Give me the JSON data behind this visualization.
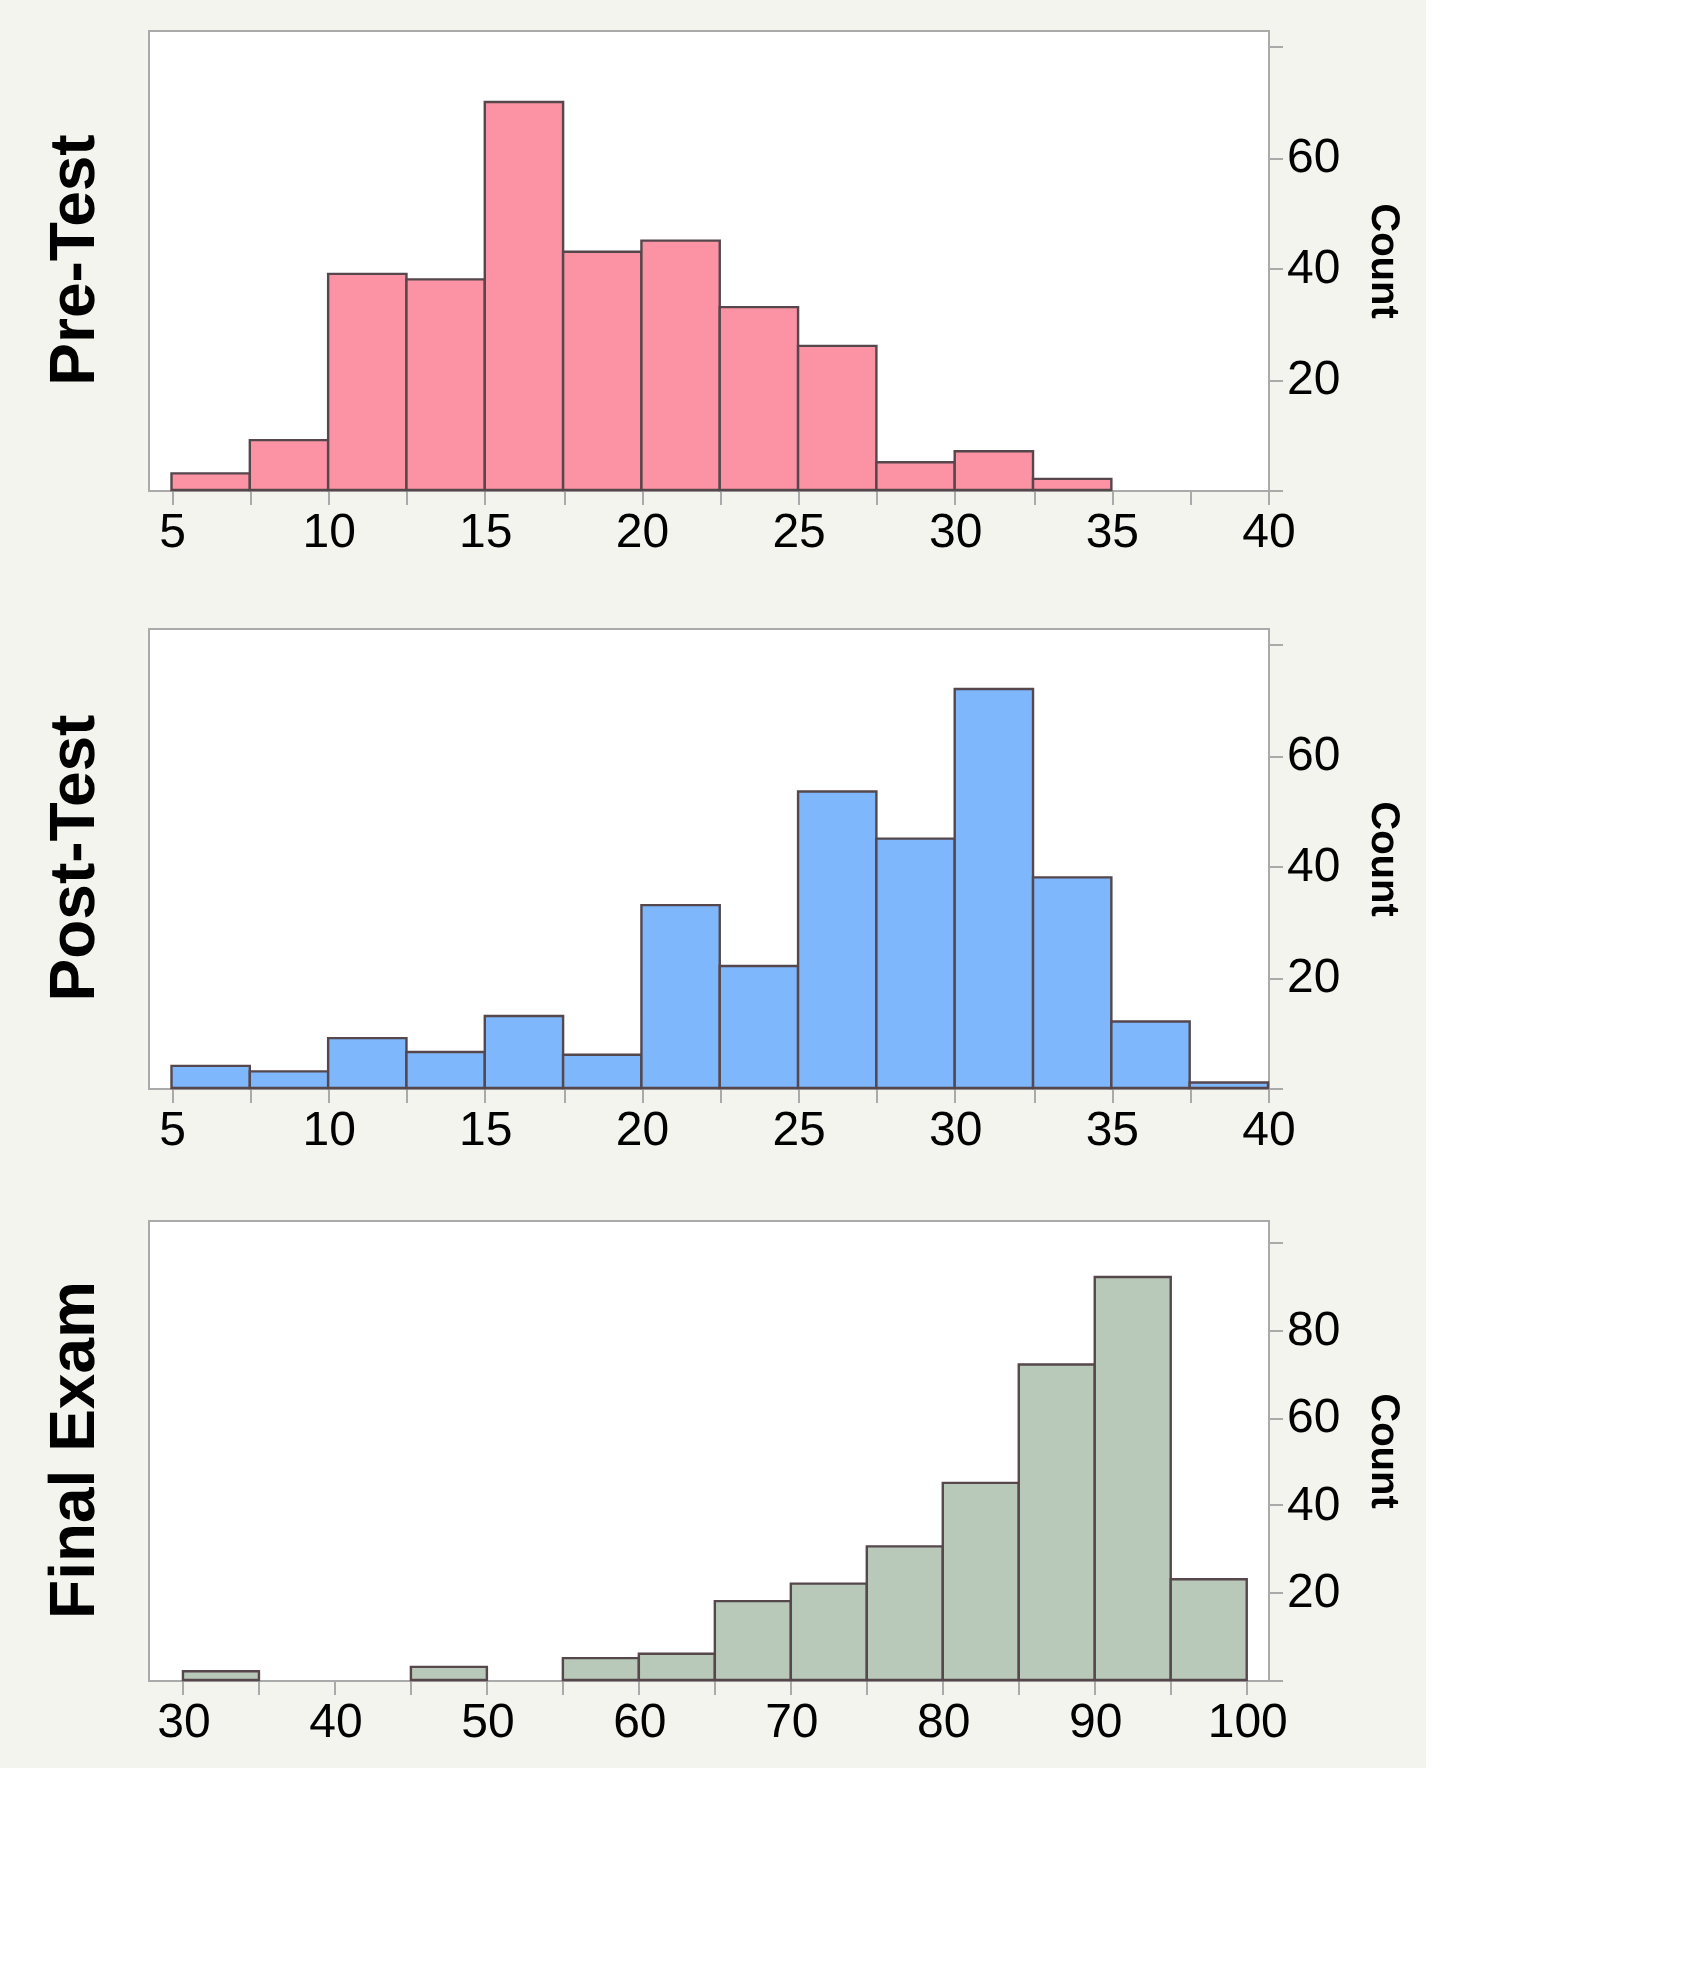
{
  "chart_data": [
    {
      "type": "histogram",
      "title": "Pre-Test",
      "ylabel": "Count",
      "bins": [
        5,
        7.5,
        10,
        12.5,
        15,
        17.5,
        20,
        22.5,
        25,
        27.5,
        30,
        32.5,
        35,
        37.5,
        40
      ],
      "values": [
        3,
        9,
        39,
        38,
        70,
        43,
        45,
        33,
        26,
        5,
        7,
        2,
        0,
        0
      ],
      "color": "#fb93a4",
      "xlim": [
        4.25,
        40
      ],
      "xticks": [
        5,
        {
          "value": 7.5,
          "label": null
        },
        10,
        {
          "value": 12.5,
          "label": null
        },
        15,
        {
          "value": 17.5,
          "label": null
        },
        20,
        {
          "value": 22.5,
          "label": null
        },
        25,
        {
          "value": 27.5,
          "label": null
        },
        30,
        {
          "value": 32.5,
          "label": null
        },
        35,
        {
          "value": 37.5,
          "label": null
        },
        40
      ],
      "ylim": [
        0,
        83
      ],
      "yticks": [
        {
          "value": 0,
          "label": null
        },
        20,
        40,
        60,
        {
          "value": 80,
          "label": null
        }
      ]
    },
    {
      "type": "histogram",
      "title": "Post-Test",
      "ylabel": "Count",
      "bins": [
        5,
        7.5,
        10,
        12.5,
        15,
        17.5,
        20,
        22.5,
        25,
        27.5,
        30,
        32.5,
        35,
        37.5,
        40
      ],
      "values": [
        4,
        3,
        9,
        6.5,
        13,
        6,
        33,
        22,
        53.5,
        45,
        72,
        38,
        12,
        1
      ],
      "color": "#7fb7fc",
      "xlim": [
        4.25,
        40
      ],
      "xticks": [
        5,
        {
          "value": 7.5,
          "label": null
        },
        10,
        {
          "value": 12.5,
          "label": null
        },
        15,
        {
          "value": 17.5,
          "label": null
        },
        20,
        {
          "value": 22.5,
          "label": null
        },
        25,
        {
          "value": 27.5,
          "label": null
        },
        30,
        {
          "value": 32.5,
          "label": null
        },
        35,
        {
          "value": 37.5,
          "label": null
        },
        40
      ],
      "ylim": [
        0,
        83
      ],
      "yticks": [
        {
          "value": 0,
          "label": null
        },
        20,
        40,
        60,
        {
          "value": 80,
          "label": null
        }
      ]
    },
    {
      "type": "histogram",
      "title": "Final Exam",
      "ylabel": "Count",
      "bins": [
        30,
        35,
        40,
        45,
        50,
        55,
        60,
        65,
        70,
        75,
        80,
        85,
        90,
        95,
        100
      ],
      "values": [
        2,
        0,
        0,
        3,
        0,
        5,
        6,
        18,
        22,
        30.5,
        45,
        72,
        92,
        23
      ],
      "color": "#b8c9b9",
      "xlim": [
        27.7,
        101.4
      ],
      "xticks": [
        30,
        {
          "value": 35,
          "label": null
        },
        40,
        {
          "value": 45,
          "label": null
        },
        50,
        {
          "value": 55,
          "label": null
        },
        60,
        {
          "value": 65,
          "label": null
        },
        70,
        {
          "value": 75,
          "label": null
        },
        80,
        {
          "value": 85,
          "label": null
        },
        90,
        {
          "value": 95,
          "label": null
        },
        100
      ],
      "ylim": [
        0,
        105
      ],
      "yticks": [
        {
          "value": 0,
          "label": null
        },
        20,
        40,
        60,
        80,
        {
          "value": 100,
          "label": null
        }
      ]
    }
  ]
}
